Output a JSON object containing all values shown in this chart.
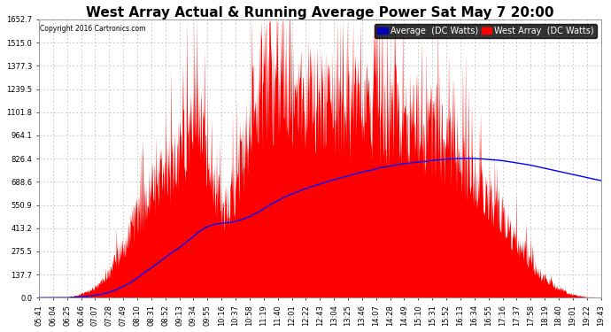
{
  "title": "West Array Actual & Running Average Power Sat May 7 20:00",
  "copyright": "Copyright 2016 Cartronics.com",
  "legend_avg": "Average  (DC Watts)",
  "legend_west": "West Array  (DC Watts)",
  "yticks": [
    0.0,
    137.7,
    275.5,
    413.2,
    550.9,
    688.6,
    826.4,
    964.1,
    1101.8,
    1239.5,
    1377.3,
    1515.0,
    1652.7
  ],
  "ymax": 1652.7,
  "xtick_labels": [
    "05:41",
    "06:04",
    "06:25",
    "06:46",
    "07:07",
    "07:28",
    "07:49",
    "08:10",
    "08:31",
    "08:52",
    "09:13",
    "09:34",
    "09:55",
    "10:16",
    "10:37",
    "10:58",
    "11:19",
    "11:40",
    "12:01",
    "12:22",
    "12:43",
    "13:04",
    "13:25",
    "13:46",
    "14:07",
    "14:28",
    "14:49",
    "15:10",
    "15:31",
    "15:52",
    "16:13",
    "16:34",
    "16:55",
    "17:16",
    "17:37",
    "17:58",
    "18:19",
    "18:40",
    "19:01",
    "19:22",
    "19:43"
  ],
  "bg_color": "#ffffff",
  "plot_bg_color": "#ffffff",
  "grid_color": "#bbbbbb",
  "red_fill_color": "#ff0000",
  "blue_line_color": "#0000ff",
  "title_fontsize": 11,
  "tick_fontsize": 6,
  "legend_fontsize": 7
}
